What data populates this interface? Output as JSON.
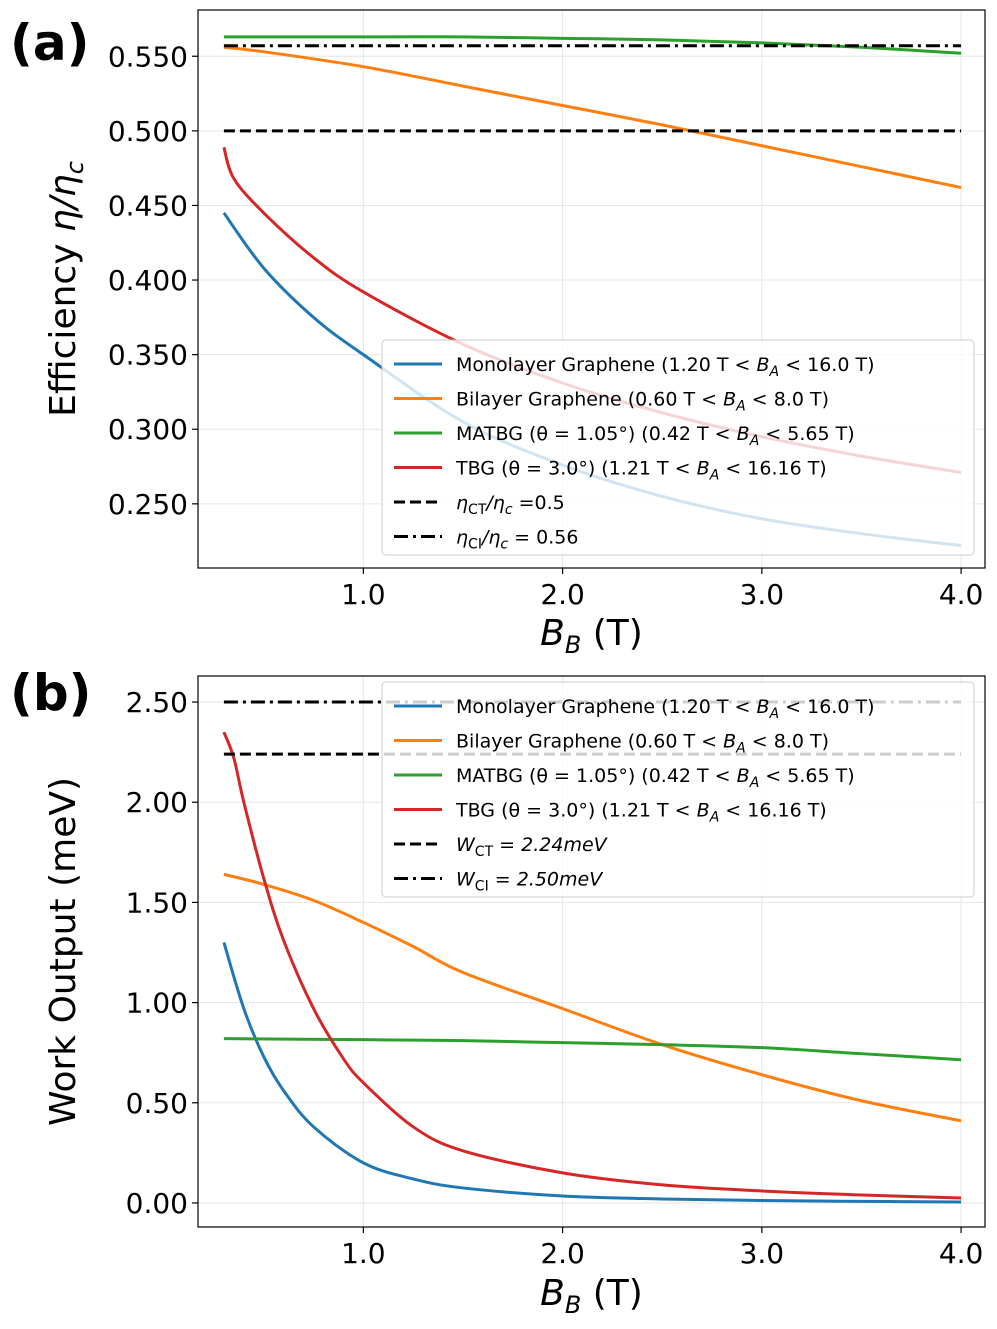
{
  "chart_data": [
    {
      "type": "line",
      "panel_label": "(a)",
      "xlabel_main": "B",
      "xlabel_sub": "B",
      "xlabel_unit": " (T)",
      "ylabel_pre": "Efficiency ",
      "ylabel_eta": "η/η",
      "ylabel_sub": "c",
      "xlim": [
        0.17,
        4.12
      ],
      "ylim": [
        0.207,
        0.581
      ],
      "xticks": [
        1.0,
        2.0,
        3.0,
        4.0
      ],
      "xtick_labels": [
        "1.0",
        "2.0",
        "3.0",
        "4.0"
      ],
      "yticks": [
        0.25,
        0.3,
        0.35,
        0.4,
        0.45,
        0.5,
        0.55
      ],
      "ytick_labels": [
        "0.250",
        "0.300",
        "0.350",
        "0.400",
        "0.450",
        "0.500",
        "0.550"
      ],
      "grid": true,
      "legend_position": "lower-right",
      "legend": [
        {
          "label": "Monolayer Graphene (1.20 T < B_A < 16.0 T)",
          "pre": "Monolayer Graphene (1.20 T < ",
          "mid": "B",
          "sub": "A",
          "post": " < 16.0 T)"
        },
        {
          "label": "Bilayer Graphene (0.60 T < B_A < 8.0 T)",
          "pre": "Bilayer Graphene (0.60 T < ",
          "mid": "B",
          "sub": "A",
          "post": " < 8.0 T)"
        },
        {
          "label": "MATBG (θ = 1.05°) (0.42 T < B_A < 5.65 T)",
          "pre": "MATBG (θ = 1.05°) (0.42 T < ",
          "mid": "B",
          "sub": "A",
          "post": " < 5.65 T)"
        },
        {
          "label": "TBG (θ = 3.0°) (1.21 T < B_A < 16.16 T)",
          "pre": "TBG (θ = 3.0°) (1.21 T < ",
          "mid": "B",
          "sub": "A",
          "post": " < 16.16 T)"
        },
        {
          "label": "η_CT/η_c =0.5",
          "pre": "η",
          "sub1": "CT",
          "mid": "/η",
          "sub2": "c",
          "post": " =0.5"
        },
        {
          "label": "η_CI/η_c = 0.56",
          "pre": "η",
          "sub1": "CI",
          "mid": "/η",
          "sub2": "c",
          "post": " = 0.56"
        }
      ],
      "series": [
        {
          "name": "Monolayer Graphene",
          "color": "#1f77b4",
          "x": [
            0.3,
            0.5,
            0.75,
            1.0,
            1.5,
            2.0,
            2.5,
            3.0,
            3.5,
            4.0
          ],
          "y": [
            0.445,
            0.408,
            0.375,
            0.35,
            0.305,
            0.276,
            0.255,
            0.24,
            0.23,
            0.222
          ]
        },
        {
          "name": "Bilayer Graphene",
          "color": "#ff7f0e",
          "x": [
            0.3,
            0.5,
            1.0,
            1.5,
            2.0,
            2.5,
            3.0,
            3.5,
            4.0
          ],
          "y": [
            0.556,
            0.553,
            0.543,
            0.53,
            0.517,
            0.504,
            0.49,
            0.476,
            0.462
          ]
        },
        {
          "name": "MATBG",
          "color": "#2ca02c",
          "x": [
            0.3,
            1.0,
            1.5,
            2.0,
            2.5,
            3.0,
            3.5,
            4.0
          ],
          "y": [
            0.563,
            0.563,
            0.563,
            0.562,
            0.561,
            0.559,
            0.556,
            0.552
          ]
        },
        {
          "name": "TBG",
          "color": "#d62728",
          "x": [
            0.3,
            0.35,
            0.5,
            0.75,
            1.0,
            1.5,
            2.0,
            2.5,
            3.0,
            3.5,
            4.0
          ],
          "y": [
            0.489,
            0.468,
            0.445,
            0.415,
            0.392,
            0.357,
            0.331,
            0.311,
            0.295,
            0.282,
            0.271
          ]
        },
        {
          "name": "η_CT/η_c",
          "color": "#000000",
          "dash": "dashed",
          "x": [
            0.3,
            4.0
          ],
          "y": [
            0.5,
            0.5
          ]
        },
        {
          "name": "η_CI/η_c",
          "color": "#000000",
          "dash": "dashdot",
          "x": [
            0.3,
            4.0
          ],
          "y": [
            0.557,
            0.557
          ]
        }
      ]
    },
    {
      "type": "line",
      "panel_label": "(b)",
      "xlabel_main": "B",
      "xlabel_sub": "B",
      "xlabel_unit": " (T)",
      "ylabel": "Work Output (meV)",
      "xlim": [
        0.17,
        4.12
      ],
      "ylim": [
        -0.12,
        2.63
      ],
      "xticks": [
        1.0,
        2.0,
        3.0,
        4.0
      ],
      "xtick_labels": [
        "1.0",
        "2.0",
        "3.0",
        "4.0"
      ],
      "yticks": [
        0.0,
        0.5,
        1.0,
        1.5,
        2.0,
        2.5
      ],
      "ytick_labels": [
        "0.00",
        "0.50",
        "1.00",
        "1.50",
        "2.00",
        "2.50"
      ],
      "grid": true,
      "legend_position": "upper-right",
      "legend": [
        {
          "label": "Monolayer Graphene (1.20 T < B_A < 16.0 T)",
          "pre": "Monolayer Graphene (1.20 T < ",
          "mid": "B",
          "sub": "A",
          "post": " < 16.0 T)"
        },
        {
          "label": "Bilayer Graphene (0.60 T < B_A < 8.0 T)",
          "pre": "Bilayer Graphene (0.60 T < ",
          "mid": "B",
          "sub": "A",
          "post": " < 8.0 T)"
        },
        {
          "label": "MATBG (θ = 1.05°) (0.42 T < B_A < 5.65 T)",
          "pre": "MATBG (θ = 1.05°) (0.42 T < ",
          "mid": "B",
          "sub": "A",
          "post": " < 5.65 T)"
        },
        {
          "label": "TBG (θ = 3.0°) (1.21 T < B_A < 16.16 T)",
          "pre": "TBG (θ = 3.0°) (1.21 T < ",
          "mid": "B",
          "sub": "A",
          "post": " < 16.16 T)"
        },
        {
          "label": "W_CT = 2.24meV",
          "pre": "W",
          "sub1": "CT",
          "mid": " = 2.24",
          "sub2": "",
          "post": "meV"
        },
        {
          "label": "W_CI = 2.50meV",
          "pre": "W",
          "sub1": "CI",
          "mid": " = 2.50",
          "sub2": "",
          "post": "meV"
        }
      ],
      "series": [
        {
          "name": "Monolayer Graphene",
          "color": "#1f77b4",
          "x": [
            0.3,
            0.4,
            0.5,
            0.6,
            0.75,
            1.0,
            1.25,
            1.5,
            2.0,
            2.5,
            3.0,
            3.5,
            4.0
          ],
          "y": [
            1.3,
            0.97,
            0.73,
            0.56,
            0.38,
            0.2,
            0.12,
            0.075,
            0.035,
            0.02,
            0.012,
            0.008,
            0.005
          ]
        },
        {
          "name": "Bilayer Graphene",
          "color": "#ff7f0e",
          "x": [
            0.3,
            0.5,
            0.75,
            1.0,
            1.25,
            1.5,
            2.0,
            2.5,
            3.0,
            3.5,
            4.0
          ],
          "y": [
            1.64,
            1.59,
            1.51,
            1.4,
            1.28,
            1.15,
            0.97,
            0.79,
            0.64,
            0.51,
            0.41
          ]
        },
        {
          "name": "MATBG",
          "color": "#2ca02c",
          "x": [
            0.3,
            1.0,
            1.5,
            2.0,
            2.5,
            3.0,
            3.5,
            4.0
          ],
          "y": [
            0.82,
            0.815,
            0.81,
            0.8,
            0.79,
            0.775,
            0.745,
            0.715
          ]
        },
        {
          "name": "TBG",
          "color": "#d62728",
          "x": [
            0.3,
            0.35,
            0.4,
            0.5,
            0.6,
            0.75,
            0.9,
            1.0,
            1.25,
            1.5,
            2.0,
            2.5,
            3.0,
            3.5,
            4.0
          ],
          "y": [
            2.35,
            2.22,
            2.0,
            1.62,
            1.31,
            0.97,
            0.72,
            0.6,
            0.38,
            0.26,
            0.15,
            0.09,
            0.06,
            0.04,
            0.025
          ]
        },
        {
          "name": "W_CT",
          "color": "#000000",
          "dash": "dashed",
          "x": [
            0.3,
            4.0
          ],
          "y": [
            2.24,
            2.24
          ]
        },
        {
          "name": "W_CI",
          "color": "#000000",
          "dash": "dashdot",
          "x": [
            0.3,
            4.0
          ],
          "y": [
            2.5,
            2.5
          ]
        }
      ]
    }
  ]
}
